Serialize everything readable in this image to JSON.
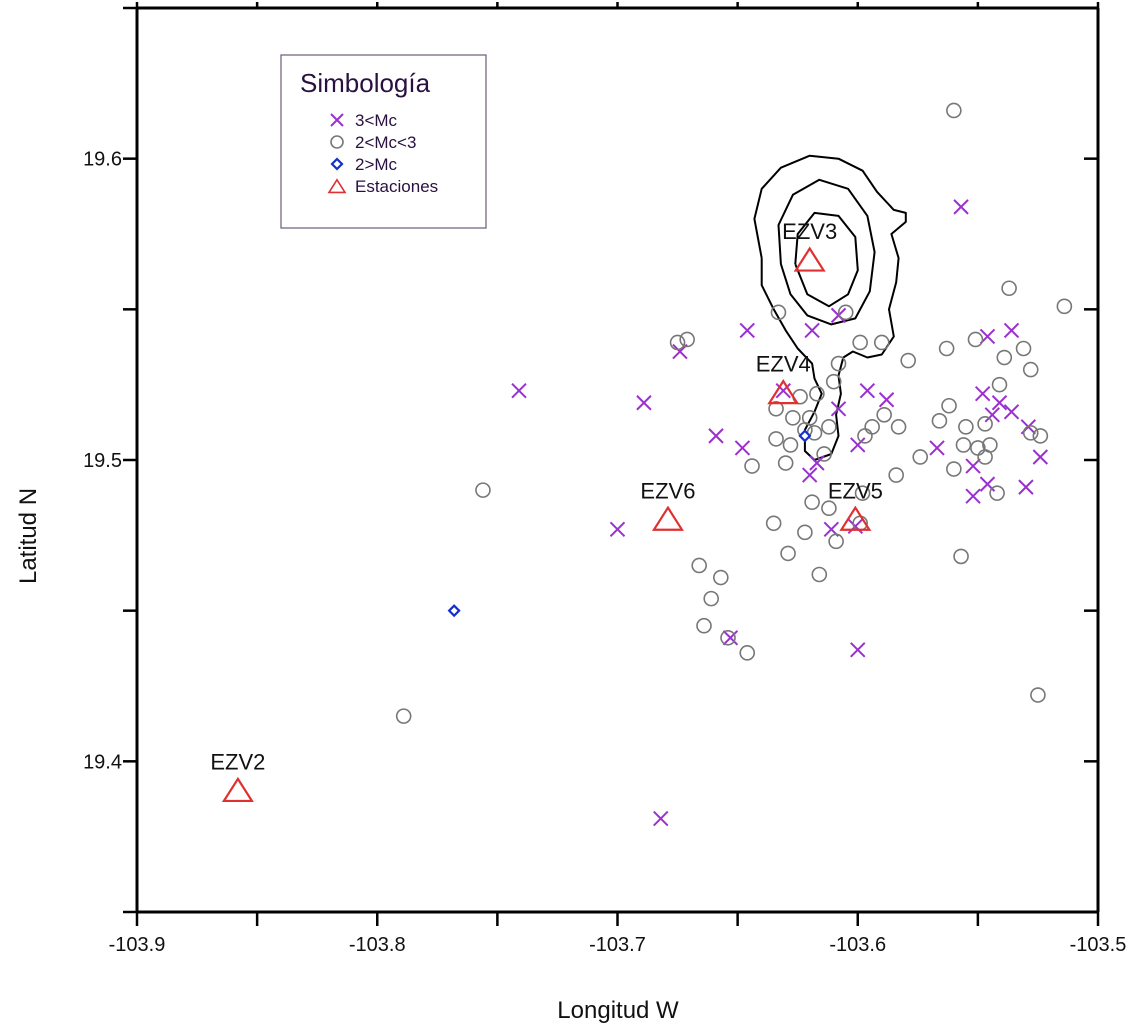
{
  "chart_data": {
    "type": "scatter",
    "xlabel": "Longitud W",
    "ylabel": "Latitud N",
    "xlim": [
      -103.9,
      -103.5
    ],
    "ylim": [
      19.35,
      19.65
    ],
    "xticks": [
      -103.9,
      -103.8,
      -103.7,
      -103.6,
      -103.5
    ],
    "xtick_labels": [
      "-103.9",
      "-103.8",
      "-103.7",
      "-103.6",
      "-103.5"
    ],
    "yticks": [
      19.4,
      19.5,
      19.6
    ],
    "ytick_labels": [
      "19.4",
      "19.5",
      "19.6"
    ],
    "grid": false,
    "legend": {
      "title": "Simbología",
      "placement": "top-left",
      "entries": [
        "3<Mc",
        "2<Mc<3",
        "2>Mc",
        "Estaciones"
      ]
    },
    "colors": {
      "big": "#9b30d0",
      "mid": "#777777",
      "small": "#1530c8",
      "station": "#e03030",
      "contour": "#000000",
      "legend_title": "#2a1040"
    },
    "series": [
      {
        "name": "3<Mc",
        "marker": "x",
        "points": [
          [
            -103.557,
            19.584
          ],
          [
            -103.646,
            19.543
          ],
          [
            -103.674,
            19.536
          ],
          [
            -103.619,
            19.543
          ],
          [
            -103.608,
            19.548
          ],
          [
            -103.546,
            19.541
          ],
          [
            -103.536,
            19.543
          ],
          [
            -103.741,
            19.523
          ],
          [
            -103.689,
            19.519
          ],
          [
            -103.631,
            19.523
          ],
          [
            -103.608,
            19.517
          ],
          [
            -103.596,
            19.523
          ],
          [
            -103.588,
            19.52
          ],
          [
            -103.548,
            19.522
          ],
          [
            -103.544,
            19.515
          ],
          [
            -103.541,
            19.519
          ],
          [
            -103.536,
            19.516
          ],
          [
            -103.529,
            19.511
          ],
          [
            -103.659,
            19.508
          ],
          [
            -103.648,
            19.504
          ],
          [
            -103.6,
            19.505
          ],
          [
            -103.617,
            19.499
          ],
          [
            -103.62,
            19.495
          ],
          [
            -103.567,
            19.504
          ],
          [
            -103.524,
            19.501
          ],
          [
            -103.552,
            19.498
          ],
          [
            -103.552,
            19.488
          ],
          [
            -103.546,
            19.492
          ],
          [
            -103.53,
            19.491
          ],
          [
            -103.7,
            19.477
          ],
          [
            -103.611,
            19.477
          ],
          [
            -103.601,
            19.478
          ],
          [
            -103.653,
            19.441
          ],
          [
            -103.6,
            19.437
          ],
          [
            -103.682,
            19.381
          ]
        ]
      },
      {
        "name": "2<Mc<3",
        "marker": "circle",
        "points": [
          [
            -103.56,
            19.616
          ],
          [
            -103.514,
            19.551
          ],
          [
            -103.537,
            19.557
          ],
          [
            -103.675,
            19.539
          ],
          [
            -103.671,
            19.54
          ],
          [
            -103.633,
            19.549
          ],
          [
            -103.605,
            19.549
          ],
          [
            -103.599,
            19.539
          ],
          [
            -103.608,
            19.532
          ],
          [
            -103.59,
            19.539
          ],
          [
            -103.579,
            19.533
          ],
          [
            -103.563,
            19.537
          ],
          [
            -103.551,
            19.54
          ],
          [
            -103.539,
            19.534
          ],
          [
            -103.531,
            19.537
          ],
          [
            -103.528,
            19.53
          ],
          [
            -103.541,
            19.525
          ],
          [
            -103.61,
            19.526
          ],
          [
            -103.617,
            19.522
          ],
          [
            -103.624,
            19.521
          ],
          [
            -103.634,
            19.517
          ],
          [
            -103.627,
            19.514
          ],
          [
            -103.62,
            19.514
          ],
          [
            -103.622,
            19.51
          ],
          [
            -103.618,
            19.509
          ],
          [
            -103.612,
            19.511
          ],
          [
            -103.597,
            19.508
          ],
          [
            -103.594,
            19.511
          ],
          [
            -103.589,
            19.515
          ],
          [
            -103.583,
            19.511
          ],
          [
            -103.562,
            19.518
          ],
          [
            -103.566,
            19.513
          ],
          [
            -103.555,
            19.511
          ],
          [
            -103.547,
            19.512
          ],
          [
            -103.528,
            19.509
          ],
          [
            -103.524,
            19.508
          ],
          [
            -103.634,
            19.507
          ],
          [
            -103.628,
            19.505
          ],
          [
            -103.614,
            19.502
          ],
          [
            -103.63,
            19.499
          ],
          [
            -103.644,
            19.498
          ],
          [
            -103.574,
            19.501
          ],
          [
            -103.56,
            19.497
          ],
          [
            -103.547,
            19.501
          ],
          [
            -103.545,
            19.505
          ],
          [
            -103.55,
            19.504
          ],
          [
            -103.556,
            19.505
          ],
          [
            -103.542,
            19.489
          ],
          [
            -103.598,
            19.489
          ],
          [
            -103.584,
            19.495
          ],
          [
            -103.756,
            19.49
          ],
          [
            -103.619,
            19.486
          ],
          [
            -103.612,
            19.484
          ],
          [
            -103.635,
            19.479
          ],
          [
            -103.622,
            19.476
          ],
          [
            -103.609,
            19.473
          ],
          [
            -103.599,
            19.479
          ],
          [
            -103.557,
            19.468
          ],
          [
            -103.629,
            19.469
          ],
          [
            -103.616,
            19.462
          ],
          [
            -103.666,
            19.465
          ],
          [
            -103.657,
            19.461
          ],
          [
            -103.661,
            19.454
          ],
          [
            -103.664,
            19.445
          ],
          [
            -103.654,
            19.441
          ],
          [
            -103.646,
            19.436
          ],
          [
            -103.525,
            19.422
          ],
          [
            -103.789,
            19.415
          ]
        ]
      },
      {
        "name": "2>Mc",
        "marker": "diamond",
        "points": [
          [
            -103.622,
            19.508
          ],
          [
            -103.768,
            19.45
          ]
        ]
      }
    ],
    "stations": [
      {
        "name": "EZV3",
        "x": -103.62,
        "y": 19.566
      },
      {
        "name": "EZV4",
        "x": -103.631,
        "y": 19.522
      },
      {
        "name": "EZV6",
        "x": -103.679,
        "y": 19.48
      },
      {
        "name": "EZV5",
        "x": -103.601,
        "y": 19.48
      },
      {
        "name": "EZV2",
        "x": -103.858,
        "y": 19.39
      }
    ],
    "contours": [
      [
        [
          -103.64,
          19.567
        ],
        [
          -103.643,
          19.58
        ],
        [
          -103.64,
          19.59
        ],
        [
          -103.632,
          19.597
        ],
        [
          -103.62,
          19.601
        ],
        [
          -103.608,
          19.6
        ],
        [
          -103.598,
          19.596
        ],
        [
          -103.592,
          19.589
        ],
        [
          -103.585,
          19.583
        ],
        [
          -103.58,
          19.582
        ],
        [
          -103.58,
          19.579
        ],
        [
          -103.586,
          19.575
        ],
        [
          -103.583,
          19.567
        ],
        [
          -103.584,
          19.559
        ],
        [
          -103.587,
          19.55
        ],
        [
          -103.585,
          19.541
        ],
        [
          -103.59,
          19.535
        ],
        [
          -103.596,
          19.534
        ],
        [
          -103.602,
          19.536
        ],
        [
          -103.606,
          19.534
        ],
        [
          -103.608,
          19.528
        ],
        [
          -103.607,
          19.522
        ],
        [
          -103.609,
          19.515
        ],
        [
          -103.608,
          19.508
        ],
        [
          -103.611,
          19.502
        ],
        [
          -103.618,
          19.5
        ],
        [
          -103.622,
          19.503
        ],
        [
          -103.622,
          19.51
        ],
        [
          -103.618,
          19.516
        ],
        [
          -103.615,
          19.522
        ],
        [
          -103.618,
          19.527
        ],
        [
          -103.619,
          19.532
        ],
        [
          -103.625,
          19.537
        ],
        [
          -103.63,
          19.543
        ],
        [
          -103.635,
          19.55
        ],
        [
          -103.64,
          19.558
        ],
        [
          -103.64,
          19.567
        ]
      ],
      [
        [
          -103.632,
          19.565
        ],
        [
          -103.633,
          19.578
        ],
        [
          -103.627,
          19.588
        ],
        [
          -103.616,
          19.593
        ],
        [
          -103.604,
          19.59
        ],
        [
          -103.596,
          19.581
        ],
        [
          -103.593,
          19.569
        ],
        [
          -103.595,
          19.556
        ],
        [
          -103.601,
          19.547
        ],
        [
          -103.611,
          19.545
        ],
        [
          -103.621,
          19.548
        ],
        [
          -103.628,
          19.555
        ],
        [
          -103.632,
          19.565
        ]
      ],
      [
        [
          -103.626,
          19.565
        ],
        [
          -103.625,
          19.575
        ],
        [
          -103.618,
          19.582
        ],
        [
          -103.608,
          19.581
        ],
        [
          -103.601,
          19.574
        ],
        [
          -103.6,
          19.563
        ],
        [
          -103.604,
          19.555
        ],
        [
          -103.612,
          19.551
        ],
        [
          -103.621,
          19.555
        ],
        [
          -103.626,
          19.565
        ]
      ]
    ]
  }
}
